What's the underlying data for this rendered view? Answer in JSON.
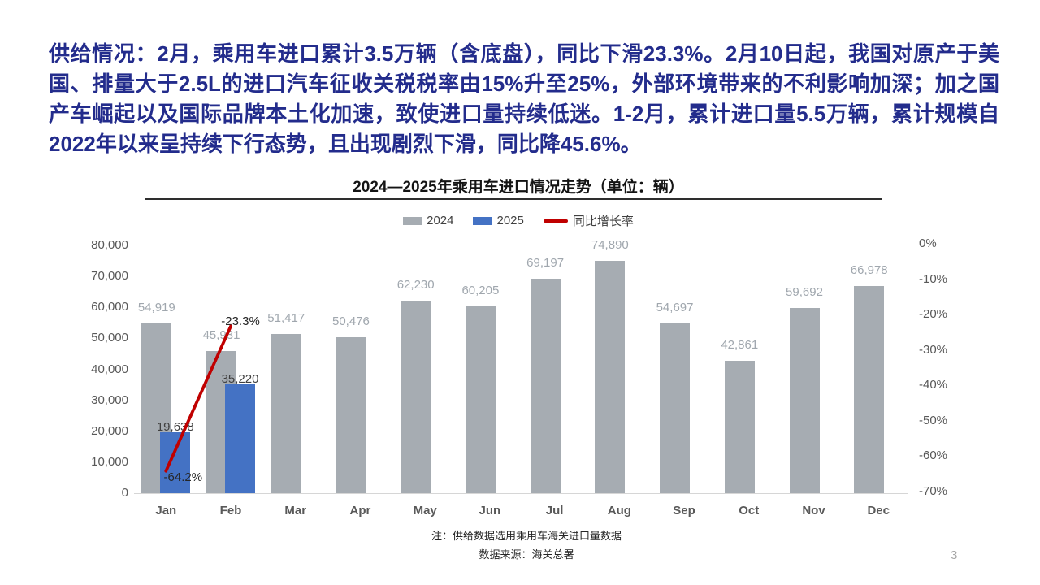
{
  "page": {
    "number": "3"
  },
  "summary": {
    "text": "供给情况：2月，乘用车进口累计3.5万辆（含底盘），同比下滑23.3%。2月10日起，我国对原产于美国、排量大于2.5L的进口汽车征收关税税率由15%升至25%，外部环境带来的不利影响加深；加之国产车崛起以及国际品牌本土化加速，致使进口量持续低迷。1-2月，累计进口量5.5万辆，累计规模自2022年以来呈持续下行态势，且出现剧烈下滑，同比降45.6%。",
    "color": "#232C8C"
  },
  "notes": {
    "line1": "注：供给数据选用乘用车海关进口量数据",
    "line2": "数据来源：海关总署"
  },
  "chart_data": {
    "type": "bar",
    "subtype": "combo-bar-line-dual-axis",
    "title": "2024—2025年乘用车进口情况走势（单位：辆）",
    "categories": [
      "Jan",
      "Feb",
      "Mar",
      "Apr",
      "May",
      "Jun",
      "Jul",
      "Aug",
      "Sep",
      "Oct",
      "Nov",
      "Dec"
    ],
    "series": [
      {
        "name": "2024",
        "type": "bar",
        "axis": "left",
        "color": "#A6ACB2",
        "values": [
          54919,
          45931,
          51417,
          50476,
          62230,
          60205,
          69197,
          74890,
          54697,
          42861,
          59692,
          66978
        ],
        "label_color": "#A0A7AE"
      },
      {
        "name": "2025",
        "type": "bar",
        "axis": "left",
        "color": "#4472C4",
        "values": [
          19638,
          35220,
          null,
          null,
          null,
          null,
          null,
          null,
          null,
          null,
          null,
          null
        ],
        "label_color": "#3F3F3F"
      },
      {
        "name": "同比增长率",
        "type": "line",
        "axis": "right",
        "color": "#C00000",
        "values": [
          -64.2,
          -23.3,
          null,
          null,
          null,
          null,
          null,
          null,
          null,
          null,
          null,
          null
        ],
        "point_labels": [
          "-64.2%",
          "-23.3%"
        ],
        "label_color": "#262626"
      }
    ],
    "left_axis": {
      "min": 0,
      "max": 80000,
      "step": 10000,
      "tick_values": [
        0,
        10000,
        20000,
        30000,
        40000,
        50000,
        60000,
        70000,
        80000
      ],
      "tick_labels": [
        "0",
        "10,000",
        "20,000",
        "30,000",
        "40,000",
        "50,000",
        "60,000",
        "70,000",
        "80,000"
      ]
    },
    "right_axis": {
      "min": -70,
      "max": 0,
      "step": 10,
      "tick_values": [
        0,
        -10,
        -20,
        -30,
        -40,
        -50,
        -60,
        -70
      ],
      "tick_labels": [
        "0%",
        "-10%",
        "-20%",
        "-30%",
        "-40%",
        "-50%",
        "-60%",
        "-70%"
      ]
    },
    "grid": "off",
    "legend_position": "top-center"
  }
}
